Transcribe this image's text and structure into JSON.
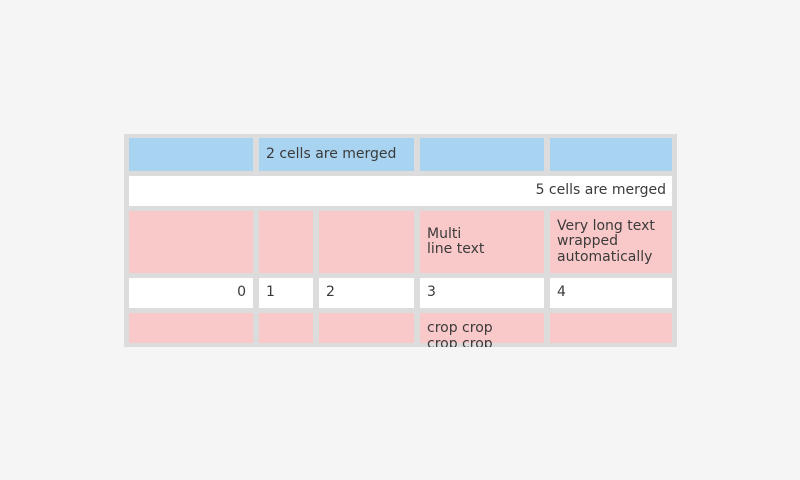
{
  "colors": {
    "page_background": "#f5f5f5",
    "table_grid": "#dcdcdc",
    "header_blue": "#a8d4f2",
    "stripe_pink": "#f9c8c8",
    "cell_white": "#ffffff",
    "text": "#3b3b3b"
  },
  "table": {
    "rows": [
      {
        "type": "header-blue",
        "cells": [
          {
            "text": ""
          },
          {
            "text": "2 cells are merged",
            "span": 2
          },
          {
            "text": ""
          },
          {
            "text": ""
          }
        ]
      },
      {
        "type": "white",
        "cells": [
          {
            "text": "5 cells are merged",
            "span": 5,
            "align": "right"
          }
        ]
      },
      {
        "type": "stripe-pink",
        "cells": [
          {
            "text": ""
          },
          {
            "text": ""
          },
          {
            "text": ""
          },
          {
            "text": "Multi\nline text"
          },
          {
            "text": "Very long text wrapped automatically"
          }
        ]
      },
      {
        "type": "white",
        "cells": [
          {
            "text": "0",
            "align": "right"
          },
          {
            "text": "1"
          },
          {
            "text": "2"
          },
          {
            "text": "3"
          },
          {
            "text": "4"
          }
        ]
      },
      {
        "type": "stripe-pink",
        "cells": [
          {
            "text": ""
          },
          {
            "text": ""
          },
          {
            "text": ""
          },
          {
            "text": "crop crop crop crop"
          },
          {
            "text": ""
          }
        ]
      }
    ]
  }
}
